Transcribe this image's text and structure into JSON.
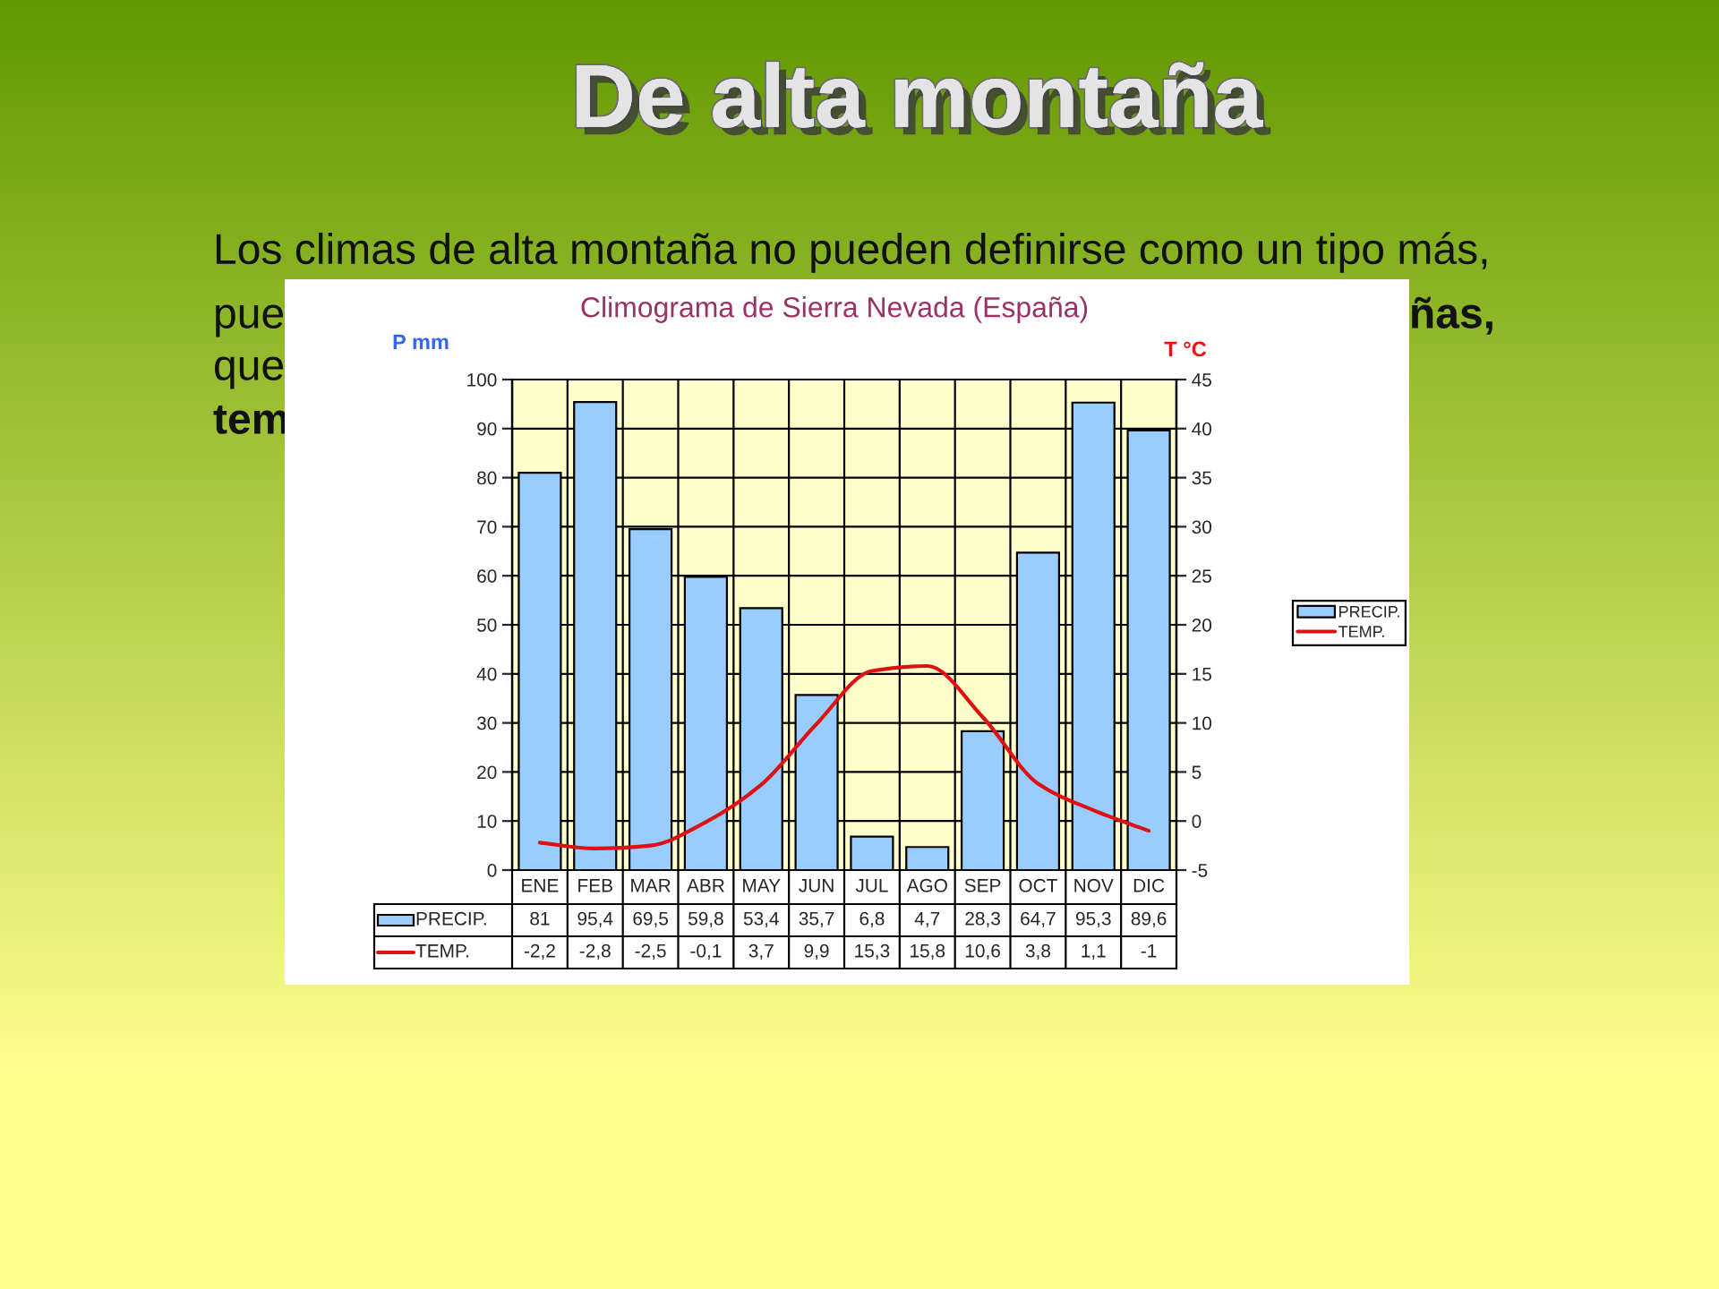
{
  "chart_data": {
    "type": "bar",
    "title": "De alta montaña",
    "subtitle": "Climograma de Sierra Nevada (España)",
    "ylabel": "P mm",
    "y2label": "T °C",
    "annotations": [
      "Los climas de alta montaña no pueden definirse como un tipo más,",
      "pue",
      "ñas,",
      "que",
      "tem"
    ],
    "categories": [
      "ENE",
      "FEB",
      "MAR",
      "ABR",
      "MAY",
      "JUN",
      "JUL",
      "AGO",
      "SEP",
      "OCT",
      "NOV",
      "DIC"
    ],
    "series": [
      {
        "name": "PRECIP.",
        "color": "#99ccff",
        "values": [
          81,
          95.4,
          69.5,
          59.8,
          53.4,
          35.7,
          6.8,
          4.7,
          28.3,
          64.7,
          95.3,
          89.6
        ],
        "value_labels": [
          "81",
          "95,4",
          "69,5",
          "59,8",
          "53,4",
          "35,7",
          "6,8",
          "4,7",
          "28,3",
          "64,7",
          "95,3",
          "89,6"
        ]
      },
      {
        "name": "TEMP.",
        "type": "line",
        "axis": "y2",
        "color": "#dd1111",
        "values": [
          -2.2,
          -2.8,
          -2.5,
          -0.1,
          3.7,
          9.9,
          15.3,
          15.8,
          10.6,
          3.8,
          1.1,
          -1
        ],
        "value_labels": [
          "-2,2",
          "-2,8",
          "-2,5",
          "-0,1",
          "3,7",
          "9,9",
          "15,3",
          "15,8",
          "10,6",
          "3,8",
          "1,1",
          "-1"
        ]
      }
    ],
    "ylim": [
      0,
      100
    ],
    "yticks": [
      0,
      10,
      20,
      30,
      40,
      50,
      60,
      70,
      80,
      90,
      100
    ],
    "y2lim": [
      -5,
      45
    ],
    "y2ticks": [
      -5,
      0,
      5,
      10,
      15,
      20,
      25,
      30,
      35,
      40,
      45
    ],
    "grid": true,
    "legend": "bottom left"
  }
}
